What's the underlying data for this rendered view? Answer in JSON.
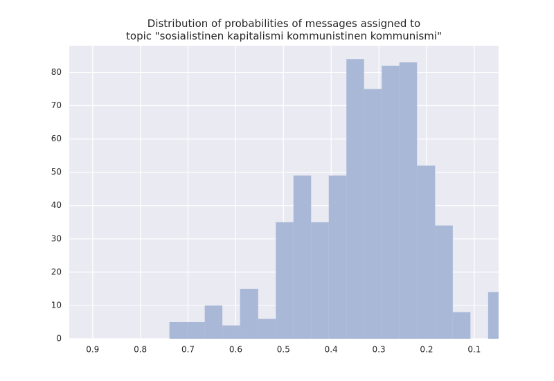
{
  "chart_data": {
    "type": "histogram",
    "title": "Distribution of probabilities of messages assigned to\ntopic \"sosialistinen kapitalismi kommunistinen kommunismi\"",
    "bins": [
      0.034,
      0.071,
      0.108,
      0.145,
      0.182,
      0.22,
      0.257,
      0.294,
      0.331,
      0.368,
      0.405,
      0.442,
      0.479,
      0.516,
      0.553,
      0.591,
      0.628,
      0.665,
      0.702,
      0.739
    ],
    "values": [
      14,
      0,
      8,
      34,
      52,
      83,
      82,
      75,
      84,
      49,
      35,
      49,
      35,
      6,
      15,
      4,
      10,
      5,
      5
    ],
    "color": "#a9b8d7",
    "xlim": [
      0.949,
      0.049
    ],
    "xticks": [
      0.9,
      0.8,
      0.7,
      0.6,
      0.5,
      0.4,
      0.3,
      0.2,
      0.1
    ],
    "ylim": [
      0,
      88
    ],
    "yticks": [
      0,
      10,
      20,
      30,
      40,
      50,
      60,
      70,
      80
    ],
    "grid": true
  }
}
